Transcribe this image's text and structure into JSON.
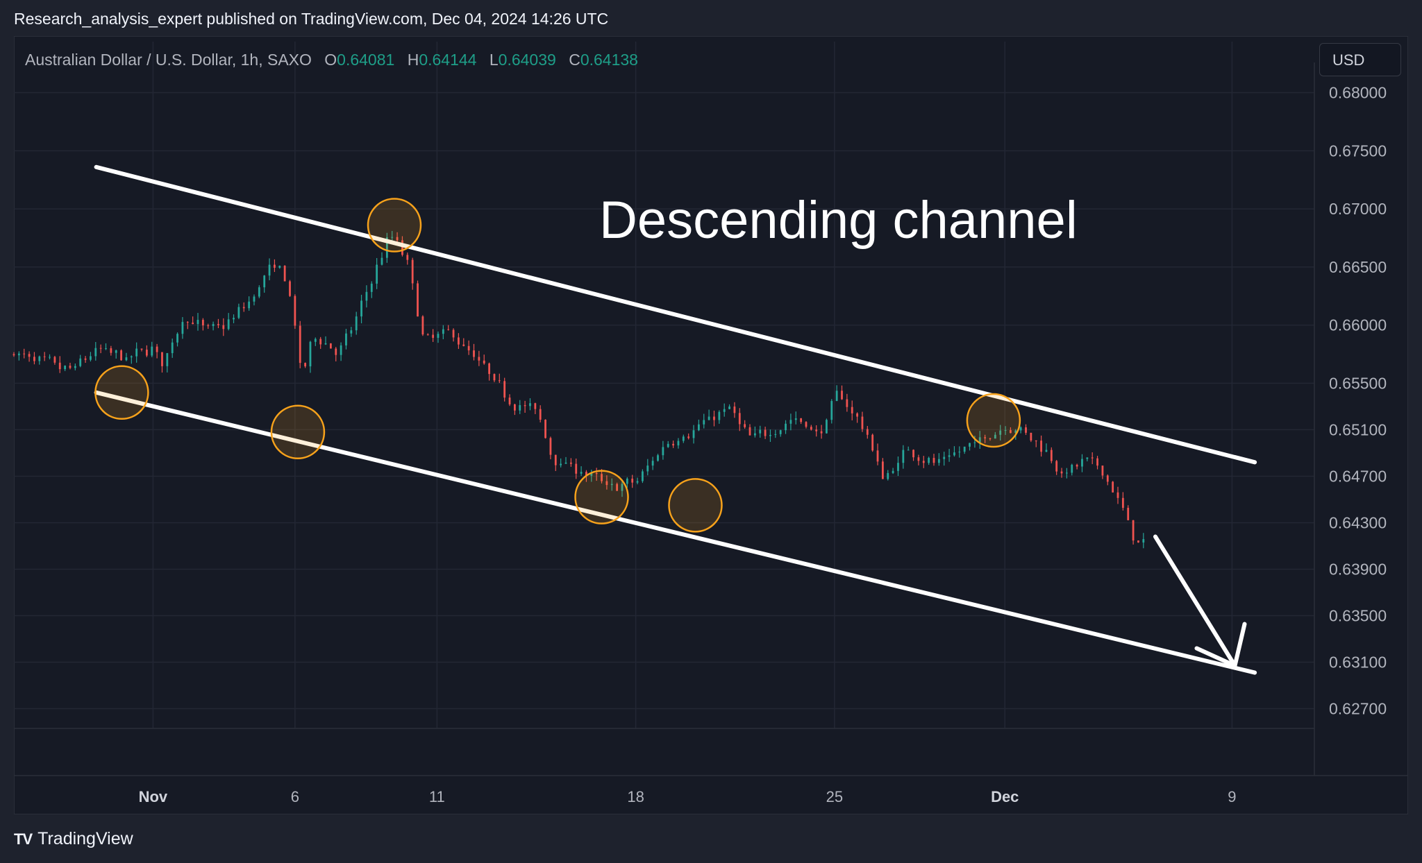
{
  "header": {
    "publisher": "Research_analysis_expert published on TradingView.com, Dec 04, 2024 14:26 UTC"
  },
  "legend": {
    "symbol": "Australian Dollar / U.S. Dollar, 1h, SAXO",
    "o_label": "O",
    "o_value": "0.64081",
    "h_label": "H",
    "h_value": "0.64144",
    "l_label": "L",
    "l_value": "0.64039",
    "c_label": "C",
    "c_value": "0.64138"
  },
  "currency_button": "USD",
  "brand": {
    "logo": "TV",
    "name": "TradingView"
  },
  "colors": {
    "up": "#26a69a",
    "down": "#ef5350",
    "background": "#161a25",
    "circle": "#f7a21b",
    "lines": "#ffffff"
  },
  "chart_data": {
    "type": "candlestick",
    "title": "",
    "ylim": [
      0.6253,
      0.6826
    ],
    "y_ticks": [
      "0.68000",
      "0.67500",
      "0.67000",
      "0.66500",
      "0.66000",
      "0.65500",
      "0.65100",
      "0.64700",
      "0.64300",
      "0.63900",
      "0.63500",
      "0.63100",
      "0.62700"
    ],
    "x_ticks": [
      {
        "label": "Nov",
        "day": 1,
        "bold": true
      },
      {
        "label": "6",
        "day": 6,
        "bold": false
      },
      {
        "label": "11",
        "day": 11,
        "bold": false
      },
      {
        "label": "18",
        "day": 18,
        "bold": false
      },
      {
        "label": "25",
        "day": 25,
        "bold": false
      },
      {
        "label": "Dec",
        "day": 31,
        "bold": true
      },
      {
        "label": "9",
        "day": 39,
        "bold": false
      }
    ],
    "xlim_days": [
      -3.9,
      41.9
    ],
    "price_path": [
      {
        "day": -3.9,
        "price": 0.6575
      },
      {
        "day": -2.0,
        "price": 0.656
      },
      {
        "day": -1.0,
        "price": 0.658
      },
      {
        "day": 0.0,
        "price": 0.657
      },
      {
        "day": 1.0,
        "price": 0.6583
      },
      {
        "day": 1.3,
        "price": 0.6562
      },
      {
        "day": 2.0,
        "price": 0.661
      },
      {
        "day": 2.8,
        "price": 0.6595
      },
      {
        "day": 3.5,
        "price": 0.66
      },
      {
        "day": 4.5,
        "price": 0.6625
      },
      {
        "day": 5.0,
        "price": 0.665
      },
      {
        "day": 5.6,
        "price": 0.6645
      },
      {
        "day": 6.0,
        "price": 0.659
      },
      {
        "day": 6.2,
        "price": 0.6545
      },
      {
        "day": 6.6,
        "price": 0.6595
      },
      {
        "day": 7.5,
        "price": 0.6575
      },
      {
        "day": 8.0,
        "price": 0.66
      },
      {
        "day": 8.8,
        "price": 0.665
      },
      {
        "day": 9.3,
        "price": 0.668
      },
      {
        "day": 9.6,
        "price": 0.667
      },
      {
        "day": 10.0,
        "price": 0.6645
      },
      {
        "day": 10.5,
        "price": 0.658
      },
      {
        "day": 11.0,
        "price": 0.6595
      },
      {
        "day": 11.6,
        "price": 0.659
      },
      {
        "day": 12.5,
        "price": 0.6565
      },
      {
        "day": 13.5,
        "price": 0.6535
      },
      {
        "day": 14.5,
        "price": 0.6525
      },
      {
        "day": 15.0,
        "price": 0.6485
      },
      {
        "day": 16.0,
        "price": 0.6475
      },
      {
        "day": 17.0,
        "price": 0.646
      },
      {
        "day": 18.0,
        "price": 0.6465
      },
      {
        "day": 19.0,
        "price": 0.65
      },
      {
        "day": 20.0,
        "price": 0.651
      },
      {
        "day": 21.2,
        "price": 0.653
      },
      {
        "day": 22.0,
        "price": 0.65
      },
      {
        "day": 23.5,
        "price": 0.652
      },
      {
        "day": 24.5,
        "price": 0.6505
      },
      {
        "day": 25.0,
        "price": 0.6545
      },
      {
        "day": 26.0,
        "price": 0.651
      },
      {
        "day": 26.7,
        "price": 0.6465
      },
      {
        "day": 27.5,
        "price": 0.6495
      },
      {
        "day": 28.5,
        "price": 0.648
      },
      {
        "day": 30.0,
        "price": 0.65
      },
      {
        "day": 31.0,
        "price": 0.6515
      },
      {
        "day": 31.5,
        "price": 0.651
      },
      {
        "day": 32.5,
        "price": 0.649
      },
      {
        "day": 33.0,
        "price": 0.647
      },
      {
        "day": 33.8,
        "price": 0.6485
      },
      {
        "day": 34.5,
        "price": 0.647
      },
      {
        "day": 35.0,
        "price": 0.6445
      },
      {
        "day": 35.5,
        "price": 0.6415
      },
      {
        "day": 36.0,
        "price": 0.641
      }
    ],
    "annotations": {
      "label": "Descending channel",
      "upper_line": [
        {
          "day": -1.0,
          "price": 0.6736
        },
        {
          "day": 39.8,
          "price": 0.6482
        }
      ],
      "lower_line": [
        {
          "day": -1.0,
          "price": 0.6542
        },
        {
          "day": 39.8,
          "price": 0.6301
        }
      ],
      "touch_circles": [
        {
          "day": -0.1,
          "price": 0.6542
        },
        {
          "day": 6.1,
          "price": 0.6508
        },
        {
          "day": 9.5,
          "price": 0.6686
        },
        {
          "day": 16.8,
          "price": 0.6452
        },
        {
          "day": 20.1,
          "price": 0.6445
        },
        {
          "day": 30.6,
          "price": 0.6518
        }
      ],
      "arrow": {
        "from": {
          "day": 36.3,
          "price": 0.6418
        },
        "to": {
          "day": 39.1,
          "price": 0.6307
        }
      }
    }
  }
}
